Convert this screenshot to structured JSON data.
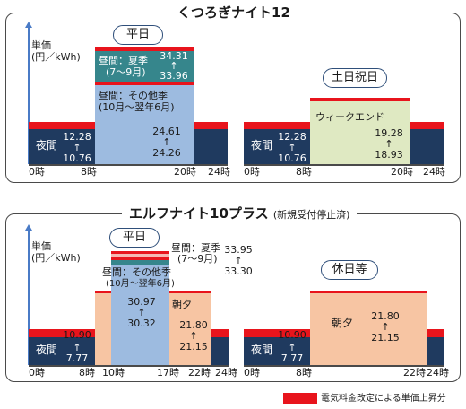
{
  "legend": {
    "color": "#e8141c",
    "label": "電気料金改定による単価上昇分"
  },
  "panel1": {
    "title": "くつろぎナイト12",
    "unit_line1": "単価",
    "unit_line2": "(円／kWh)",
    "weekday": {
      "label": "平日",
      "night": {
        "name": "夜間",
        "new": "12.28",
        "arrow": "↑",
        "old": "10.76"
      },
      "day_summer": {
        "name": "昼間：夏季",
        "period": "(7～9月)",
        "new": "34.31",
        "arrow": "↑",
        "old": "33.96"
      },
      "day_other": {
        "name": "昼間：その他季",
        "period": "(10月～翌年6月)",
        "new": "24.61",
        "arrow": "↑",
        "old": "24.26"
      },
      "ticks": [
        "0時",
        "8時",
        "20時",
        "24時"
      ]
    },
    "weekend": {
      "label": "土日祝日",
      "night": {
        "name": "夜間",
        "new": "12.28",
        "arrow": "↑",
        "old": "10.76"
      },
      "weekend_rate": {
        "name": "ウィークエンド",
        "new": "19.28",
        "arrow": "↑",
        "old": "18.93"
      },
      "ticks": [
        "0時",
        "8時",
        "20時",
        "24時"
      ]
    }
  },
  "panel2": {
    "title": "エルフナイト10プラス",
    "title_note": "(新規受付停止済)",
    "unit_line1": "単価",
    "unit_line2": "(円／kWh)",
    "weekday": {
      "label": "平日",
      "night": {
        "name": "夜間",
        "new": "10.90",
        "arrow": "↑",
        "old": "7.77"
      },
      "day_summer": {
        "name": "昼間：夏季",
        "period": "(7～9月)",
        "new": "33.95",
        "arrow": "↑",
        "old": "33.30"
      },
      "day_other": {
        "name": "昼間：その他季",
        "period": "(10月～翌年6月)",
        "new": "30.97",
        "arrow": "↑",
        "old": "30.32"
      },
      "morning_evening": {
        "name": "朝夕",
        "new": "21.80",
        "arrow": "↑",
        "old": "21.15"
      },
      "ticks": [
        "0時",
        "8時",
        "10時",
        "17時",
        "22時",
        "24時"
      ]
    },
    "holiday": {
      "label": "休日等",
      "night": {
        "name": "夜間",
        "new": "10.90",
        "arrow": "↑",
        "old": "7.77"
      },
      "morning_evening": {
        "name": "朝夕",
        "new": "21.80",
        "arrow": "↑",
        "old": "21.15"
      },
      "ticks": [
        "0時",
        "8時",
        "22時",
        "24時"
      ]
    }
  }
}
